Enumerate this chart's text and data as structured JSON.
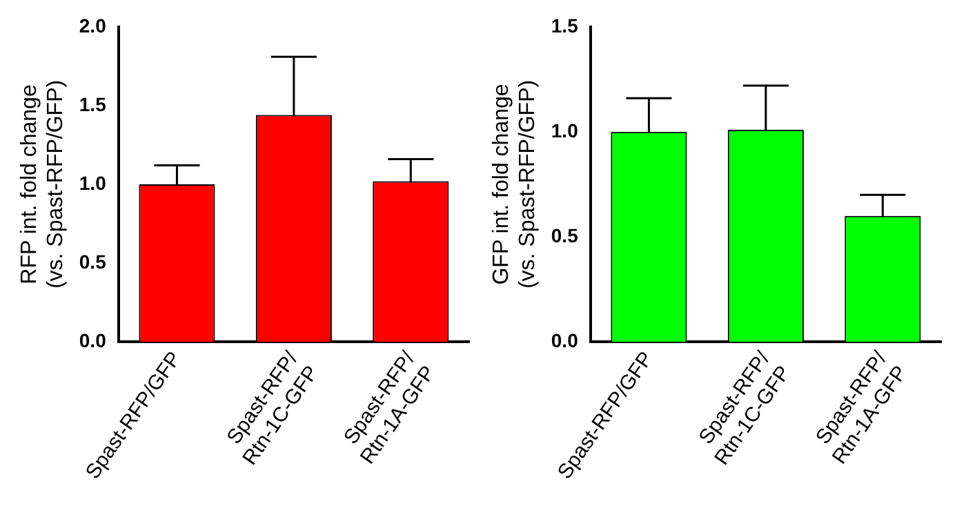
{
  "chart_data": [
    {
      "type": "bar",
      "categories": [
        "Spast-RFP/GFP",
        "Spast-RFP/\nRtn-1C-GFP",
        "Spast-RFP/\nRtn-1A-GFP"
      ],
      "ylabel": "RFP int. fold change\n(vs. Spast-RFP/GFP)",
      "values": [
        1.0,
        1.44,
        1.02
      ],
      "errors": [
        0.12,
        0.37,
        0.14
      ],
      "color": "#ff0000",
      "ylim": [
        0,
        2.0
      ],
      "yticks": [
        {
          "value": 0,
          "label": "0.0"
        },
        {
          "value": 0.5,
          "label": "0.5"
        },
        {
          "value": 1,
          "label": "1.0"
        },
        {
          "value": 1.5,
          "label": "1.5"
        },
        {
          "value": 2,
          "label": "2.0"
        }
      ],
      "grid": false,
      "legend": false
    },
    {
      "type": "bar",
      "categories": [
        "Spast-RFP/GFP",
        "Spast-RFP/\nRtn-1C-GFP",
        "Spast-RFP/\nRtn-1A-GFP"
      ],
      "ylabel": "GFP int. fold change\n(vs. Spast-RFP/GFP)",
      "values": [
        1.0,
        1.01,
        0.6
      ],
      "errors": [
        0.16,
        0.21,
        0.1
      ],
      "color": "#00ff00",
      "ylim": [
        0,
        1.5
      ],
      "yticks": [
        {
          "value": 0,
          "label": "0.0"
        },
        {
          "value": 0.5,
          "label": "0.5"
        },
        {
          "value": 1,
          "label": "1.0"
        },
        {
          "value": 1.5,
          "label": "1.5"
        }
      ],
      "grid": false,
      "legend": false
    }
  ]
}
